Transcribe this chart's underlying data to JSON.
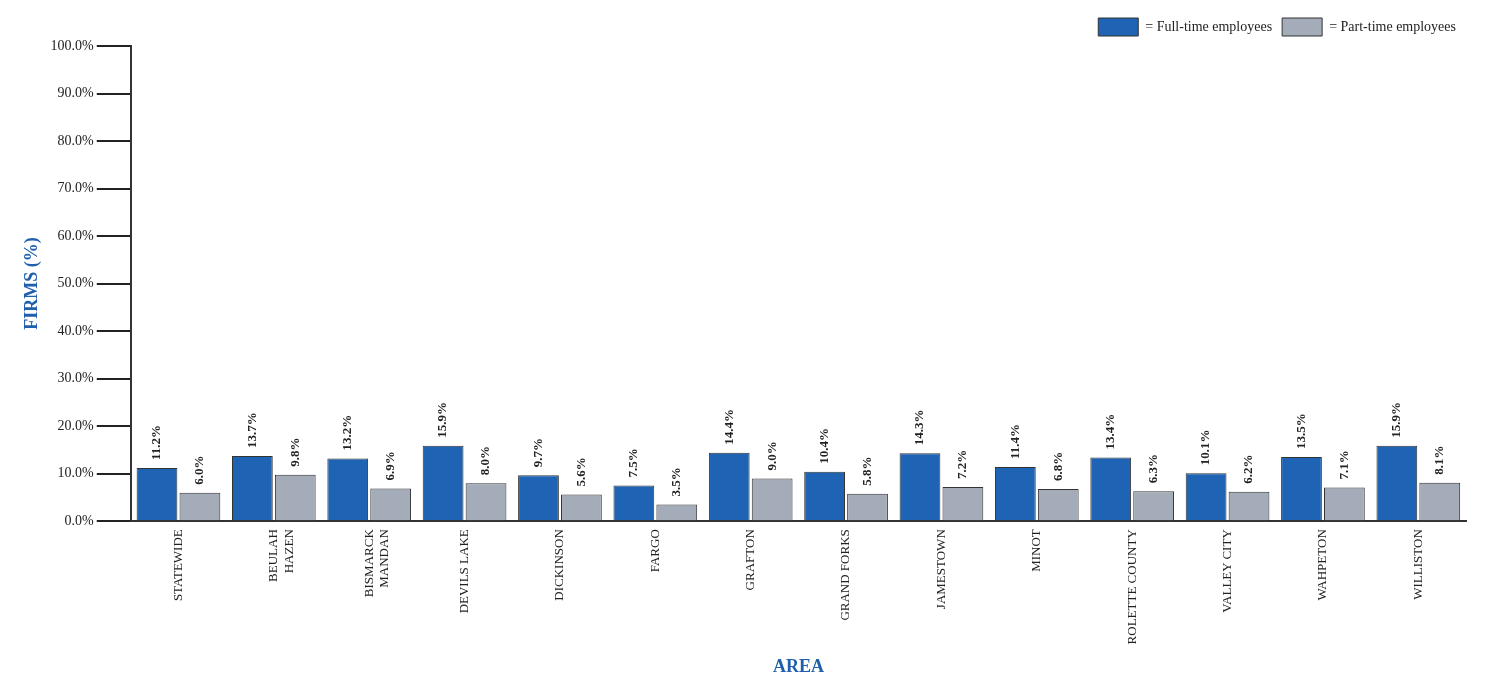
{
  "chart_data": {
    "type": "bar",
    "xlabel": "AREA",
    "ylabel": "FIRMS (%)",
    "categories": [
      "STATEWIDE",
      "BEULAH\nHAZEN",
      "BISMARCK\nMANDAN",
      "DEVILS LAKE",
      "DICKINSON",
      "FARGO",
      "GRAFTON",
      "GRAND FORKS",
      "JAMESTOWN",
      "MINOT",
      "ROLETTE COUNTY",
      "VALLEY CITY",
      "WAHPETON",
      "WILLISTON"
    ],
    "series": [
      {
        "name": "= Full-time employees",
        "color": "#1f64b4",
        "values": [
          11.2,
          13.7,
          13.2,
          15.9,
          9.7,
          7.5,
          14.4,
          10.4,
          14.3,
          11.4,
          13.4,
          10.1,
          13.5,
          15.9
        ],
        "value_labels": [
          "11.2%",
          "13.7%",
          "13.2%",
          "15.9%",
          "9.7%",
          "7.5%",
          "14.4%",
          "10.4%",
          "14.3%",
          "11.4%",
          "13.4%",
          "10.1%",
          "13.5%",
          "15.9%"
        ]
      },
      {
        "name": "= Part-time employees",
        "color": "#a3acb8",
        "values": [
          6.0,
          9.8,
          6.9,
          8.0,
          5.6,
          3.5,
          9.0,
          5.8,
          7.2,
          6.8,
          6.3,
          6.2,
          7.1,
          8.1
        ],
        "value_labels": [
          "6.0%",
          "9.8%",
          "6.9%",
          "8.0%",
          "5.6%",
          "3.5%",
          "9.0%",
          "5.8%",
          "7.2%",
          "6.8%",
          "6.3%",
          "6.2%",
          "7.1%",
          "8.1%"
        ]
      }
    ],
    "ylim": [
      0,
      100
    ],
    "yticks": [
      {
        "value": 0,
        "label": "0.0%"
      },
      {
        "value": 10,
        "label": "10.0%"
      },
      {
        "value": 20,
        "label": "20.0%"
      },
      {
        "value": 30,
        "label": "30.0%"
      },
      {
        "value": 40,
        "label": "40.0%"
      },
      {
        "value": 50,
        "label": "50.0%"
      },
      {
        "value": 60,
        "label": "60.0%"
      },
      {
        "value": 70,
        "label": "70.0%"
      },
      {
        "value": 80,
        "label": "80.0%"
      },
      {
        "value": 90,
        "label": "90.0%"
      },
      {
        "value": 100,
        "label": "100.0%"
      }
    ],
    "legend": "top right"
  }
}
